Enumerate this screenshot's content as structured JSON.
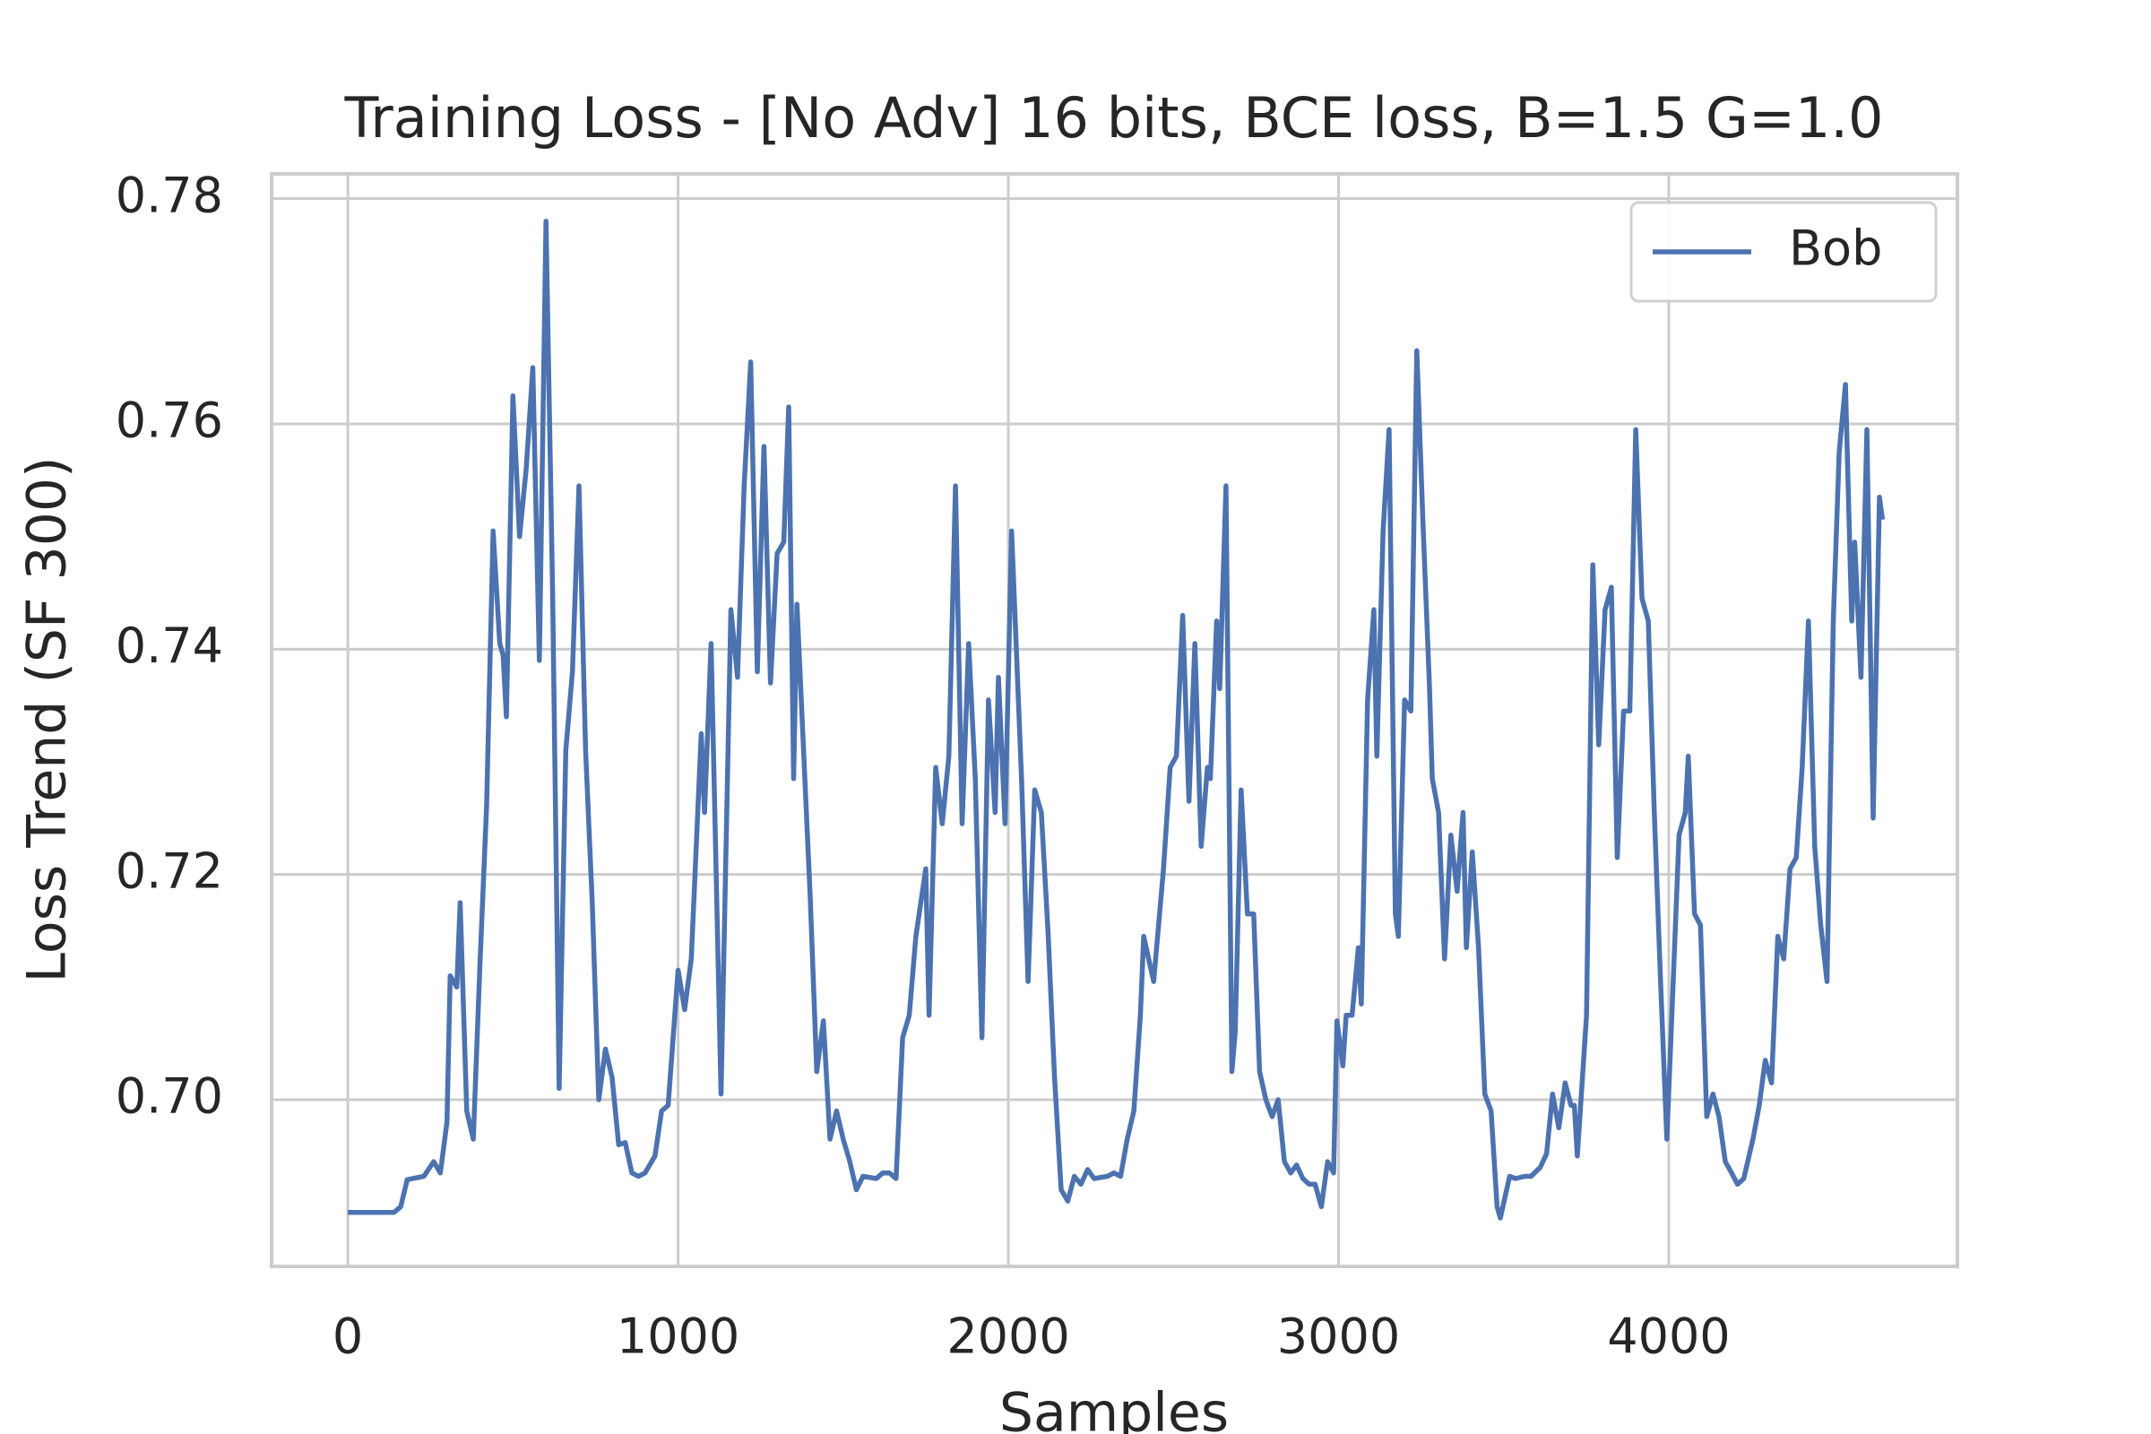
{
  "chart_data": {
    "type": "line",
    "title": "Training Loss - [No Adv] 16 bits, BCE loss, B=1.5 G=1.0",
    "xlabel": "Samples",
    "ylabel": "Loss Trend (SF 300)",
    "xlim": [
      -231,
      4874
    ],
    "ylim": [
      0.6852,
      0.7822
    ],
    "xticks": [
      0,
      1000,
      2000,
      3000,
      4000
    ],
    "yticks": [
      {
        "value": 0.7,
        "label": "0.70"
      },
      0.72,
      0.74,
      0.76,
      0.78
    ],
    "grid": true,
    "legend": "upper right",
    "x": [
      0,
      140,
      160,
      180,
      230,
      260,
      280,
      300,
      310,
      330,
      340,
      360,
      380,
      400,
      420,
      440,
      460,
      470,
      480,
      500,
      520,
      540,
      560,
      580,
      600,
      620,
      640,
      660,
      680,
      700,
      720,
      740,
      760,
      780,
      800,
      820,
      840,
      860,
      880,
      900,
      930,
      950,
      970,
      1000,
      1020,
      1040,
      1070,
      1080,
      1100,
      1130,
      1160,
      1180,
      1200,
      1220,
      1240,
      1260,
      1280,
      1300,
      1320,
      1335,
      1350,
      1360,
      1380,
      1400,
      1420,
      1440,
      1460,
      1480,
      1500,
      1520,
      1540,
      1560,
      1600,
      1620,
      1640,
      1660,
      1680,
      1700,
      1720,
      1750,
      1760,
      1780,
      1800,
      1820,
      1840,
      1860,
      1880,
      1900,
      1920,
      1940,
      1960,
      1970,
      1990,
      2010,
      2040,
      2060,
      2080,
      2100,
      2120,
      2140,
      2160,
      2180,
      2200,
      2220,
      2240,
      2260,
      2300,
      2320,
      2340,
      2360,
      2380,
      2400,
      2410,
      2440,
      2470,
      2490,
      2509,
      2528,
      2547,
      2565,
      2584,
      2603,
      2612,
      2631,
      2640,
      2659,
      2677,
      2687,
      2705,
      2724,
      2743,
      2761,
      2780,
      2799,
      2817,
      2836,
      2855,
      2873,
      2892,
      2911,
      2929,
      2948,
      2967,
      2985,
      2995,
      3013,
      3023,
      3041,
      3060,
      3069,
      3088,
      3107,
      3116,
      3135,
      3153,
      3172,
      3181,
      3200,
      3219,
      3237,
      3256,
      3275,
      3284,
      3303,
      3321,
      3340,
      3359,
      3377,
      3387,
      3405,
      3424,
      3443,
      3462,
      3480,
      3490,
      3518,
      3536,
      3564,
      3583,
      3611,
      3630,
      3648,
      3667,
      3686,
      3704,
      3714,
      3723,
      3751,
      3770,
      3788,
      3807,
      3826,
      3844,
      3863,
      3882,
      3900,
      3919,
      3938,
      3956,
      3975,
      3994,
      4012,
      4031,
      4050,
      4059,
      4078,
      4096,
      4115,
      4134,
      4152,
      4171,
      4190,
      4208,
      4227,
      4255,
      4274,
      4292,
      4311,
      4330,
      4348,
      4367,
      4386,
      4404,
      4423,
      4442,
      4460,
      4479,
      4498,
      4516,
      4535,
      4554,
      4563,
      4582,
      4600,
      4619,
      4638,
      4647
    ],
    "series": [
      {
        "name": "Bob",
        "color": "#4c72b0",
        "values": [
          0.69,
          0.69,
          0.6905,
          0.6929,
          0.6932,
          0.6945,
          0.6935,
          0.698,
          0.711,
          0.71,
          0.7175,
          0.699,
          0.6965,
          0.712,
          0.726,
          0.7505,
          0.7405,
          0.7395,
          0.734,
          0.7625,
          0.75,
          0.756,
          0.765,
          0.739,
          0.778,
          0.745,
          0.701,
          0.731,
          0.738,
          0.7545,
          0.731,
          0.7175,
          0.7,
          0.7045,
          0.702,
          0.696,
          0.6962,
          0.6935,
          0.6932,
          0.6935,
          0.695,
          0.699,
          0.6995,
          0.7115,
          0.708,
          0.7125,
          0.7325,
          0.7255,
          0.7405,
          0.7005,
          0.7435,
          0.7375,
          0.7545,
          0.7655,
          0.738,
          0.758,
          0.737,
          0.7485,
          0.7495,
          0.7615,
          0.7285,
          0.744,
          0.731,
          0.718,
          0.7025,
          0.707,
          0.6965,
          0.699,
          0.6965,
          0.6945,
          0.692,
          0.6932,
          0.693,
          0.6935,
          0.6935,
          0.693,
          0.7055,
          0.7075,
          0.7145,
          0.7205,
          0.7075,
          0.7295,
          0.7245,
          0.7305,
          0.7545,
          0.7245,
          0.7405,
          0.7285,
          0.7055,
          0.7355,
          0.7255,
          0.7375,
          0.7245,
          0.7505,
          0.7285,
          0.7105,
          0.7275,
          0.7255,
          0.715,
          0.702,
          0.692,
          0.691,
          0.6932,
          0.6925,
          0.6938,
          0.693,
          0.6932,
          0.6935,
          0.6932,
          0.6965,
          0.699,
          0.7075,
          0.7145,
          0.7105,
          0.7205,
          0.7295,
          0.7305,
          0.743,
          0.7265,
          0.7405,
          0.7225,
          0.7295,
          0.7285,
          0.7425,
          0.7365,
          0.7545,
          0.7025,
          0.706,
          0.7275,
          0.7165,
          0.7165,
          0.7025,
          0.7,
          0.6985,
          0.7,
          0.6945,
          0.6935,
          0.6942,
          0.693,
          0.6925,
          0.6925,
          0.6905,
          0.6945,
          0.6935,
          0.707,
          0.703,
          0.7075,
          0.7075,
          0.7135,
          0.7085,
          0.7355,
          0.7435,
          0.7305,
          0.7505,
          0.7595,
          0.7165,
          0.7145,
          0.7355,
          0.7345,
          0.7665,
          0.751,
          0.737,
          0.7285,
          0.7255,
          0.7125,
          0.7235,
          0.7185,
          0.7255,
          0.7135,
          0.722,
          0.7135,
          0.7005,
          0.699,
          0.6905,
          0.6895,
          0.6932,
          0.693,
          0.6932,
          0.6932,
          0.694,
          0.6952,
          0.7005,
          0.6975,
          0.7015,
          0.6995,
          0.6995,
          0.695,
          0.7075,
          0.7475,
          0.7315,
          0.7435,
          0.7455,
          0.7215,
          0.7345,
          0.7345,
          0.7595,
          0.7445,
          0.7425,
          0.7255,
          0.7105,
          0.6965,
          0.7095,
          0.7235,
          0.7255,
          0.7305,
          0.7165,
          0.7155,
          0.6985,
          0.7005,
          0.6985,
          0.6945,
          0.6935,
          0.6925,
          0.693,
          0.6965,
          0.6995,
          0.7035,
          0.7015,
          0.7145,
          0.7125,
          0.7205,
          0.7215,
          0.7295,
          0.7425,
          0.7225,
          0.7155,
          0.7105,
          0.7425,
          0.7575,
          0.7635,
          0.7425,
          0.7495,
          0.7375,
          0.7595,
          0.725,
          0.7535,
          0.7515
        ]
      }
    ]
  }
}
